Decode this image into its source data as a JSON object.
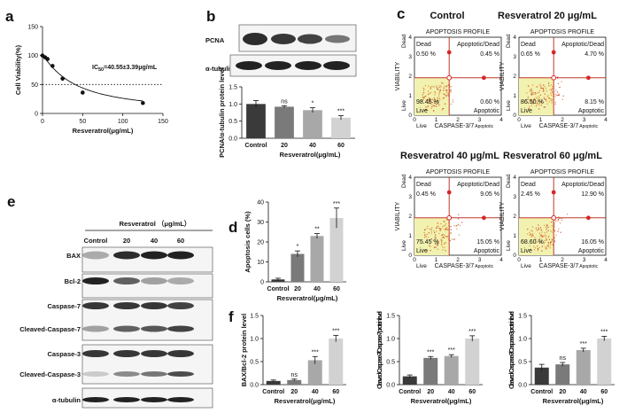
{
  "panel_labels": [
    "a",
    "b",
    "c",
    "d",
    "e",
    "f"
  ],
  "colors": {
    "control": "#3a3a3a",
    "d20": "#7a7a7a",
    "d40": "#a8a8a8",
    "d60": "#d2d2d2",
    "flow_dot": "#d62728",
    "flow_gate": "#f2f2b0",
    "flow_line": "#c0392b"
  },
  "chart_data": [
    {
      "id": "a",
      "type": "line",
      "xlabel": "Resveratrol(μg/mL)",
      "ylabel": "Cell Viability(%)",
      "annotation_ic50": "IC",
      "annotation_ic50_sub": "50",
      "annotation_ic50_value": "=40.55±3.39μg/mL",
      "xlim": [
        0,
        150
      ],
      "ylim": [
        0,
        150
      ],
      "xticks": [
        "0",
        "50",
        "100",
        "150"
      ],
      "yticks": [
        "0",
        "50",
        "100",
        "150"
      ],
      "reference_y": 50,
      "x": [
        0,
        3.125,
        6.25,
        12.5,
        25,
        50,
        125
      ],
      "y": [
        100,
        97,
        94,
        82,
        60,
        36,
        18
      ],
      "err": [
        2,
        2,
        2,
        3,
        3,
        3,
        2
      ]
    },
    {
      "id": "b",
      "type": "bar",
      "ylabel": "PCNA/α-tubulin protein level",
      "xlabel": "Resveratrol(μg/mL)",
      "blot_labels": [
        "PCNA",
        "α-tubulin"
      ],
      "categories": [
        "Control",
        "20",
        "40",
        "60"
      ],
      "values": [
        1.0,
        0.92,
        0.82,
        0.6
      ],
      "err": [
        0.1,
        0.03,
        0.07,
        0.06
      ],
      "significance": [
        "",
        "ns",
        "*",
        "***"
      ],
      "ylim": [
        0,
        1.5
      ],
      "yticks": [
        "0.0",
        "0.5",
        "1.0",
        "1.5"
      ]
    },
    {
      "id": "c",
      "type": "scatter",
      "subtitle": "APOPTOSIS PROFILE",
      "xlabel": "CASPASE-3/7",
      "xlabel_suffix": "Apoptotic",
      "ylabel": "VIABILITY",
      "quadrant_labels": {
        "dead": "Dead",
        "apoptotic_dead": "Apoptotic/Dead",
        "live": "Live",
        "apoptotic": "Apoptotic"
      },
      "side_labels": {
        "dead": "Dead",
        "live": "Live",
        "x_live": "Live"
      },
      "xticks": [
        "0",
        "1",
        "2",
        "3",
        "4"
      ],
      "yticks": [
        "0",
        "1",
        "2",
        "3",
        "4"
      ],
      "plots": [
        {
          "title": "Control",
          "dead": "0.50 %",
          "apoptotic_dead": "0.45 %",
          "live": "98.45 %",
          "apoptotic": "0.60 %"
        },
        {
          "title": "Resveratrol 20 μg/mL",
          "dead": "0.65 %",
          "apoptotic_dead": "4.70 %",
          "live": "86.50 %",
          "apoptotic": "8.15 %"
        },
        {
          "title": "Resveratrol 40 μg/mL",
          "dead": "0.45 %",
          "apoptotic_dead": "9.05 %",
          "live": "75.45 %",
          "apoptotic": "15.05 %"
        },
        {
          "title": "Resveratrol 60 μg/mL",
          "dead": "2.45 %",
          "apoptotic_dead": "12.90 %",
          "live": "68.60 %",
          "apoptotic": "16.05 %"
        }
      ]
    },
    {
      "id": "d",
      "type": "bar",
      "ylabel": "Apoptosis cells (%)",
      "xlabel": "Resveratrol(μg/mL)",
      "categories": [
        "Control",
        "20",
        "40",
        "60"
      ],
      "values": [
        1.2,
        14,
        23,
        32
      ],
      "err": [
        0.6,
        1.5,
        1.2,
        5
      ],
      "significance": [
        "",
        "*",
        "**",
        "***"
      ],
      "ylim": [
        0,
        40
      ],
      "yticks": [
        "0",
        "10",
        "20",
        "30",
        "40"
      ]
    },
    {
      "id": "e",
      "type": "table",
      "header": "Resveratrol （μg/mL）",
      "columns": [
        "Control",
        "20",
        "40",
        "60"
      ],
      "rows": [
        "BAX",
        "Bcl-2",
        "Caspase-7",
        "Cleaved-Caspase-7",
        "Caspase-3",
        "Cleaved-Caspase-3",
        "α-tubulin"
      ]
    },
    {
      "id": "f1",
      "type": "bar",
      "ylabel": "BAX/Bcl-2 protein level",
      "xlabel": "Resveratrol(μg/mL)",
      "categories": [
        "Control",
        "20",
        "40",
        "60"
      ],
      "values": [
        0.08,
        0.1,
        0.53,
        1.0
      ],
      "err": [
        0.02,
        0.02,
        0.08,
        0.07
      ],
      "significance": [
        "",
        "ns",
        "***",
        "***"
      ],
      "ylim": [
        0,
        1.5
      ],
      "yticks": [
        "0.0",
        "0.5",
        "1.0",
        "1.5"
      ]
    },
    {
      "id": "f2",
      "type": "bar",
      "ylabel": "Cleaved-Caspase-7/Caspase-7 protein level",
      "xlabel": "Resveratrol(μg/mL)",
      "categories": [
        "Control",
        "20",
        "40",
        "60"
      ],
      "values": [
        0.18,
        0.58,
        0.62,
        1.0
      ],
      "err": [
        0.03,
        0.03,
        0.03,
        0.06
      ],
      "significance": [
        "",
        "***",
        "***",
        "***"
      ],
      "ylim": [
        0,
        1.5
      ],
      "yticks": [
        "0.0",
        "0.5",
        "1.0",
        "1.5"
      ]
    },
    {
      "id": "f3",
      "type": "bar",
      "ylabel": "Cleaved-Caspase-3/Caspase-3 protein level",
      "xlabel": "Resveratrol(μg/mL)",
      "categories": [
        "Control",
        "20",
        "40",
        "60"
      ],
      "values": [
        0.37,
        0.44,
        0.75,
        1.0
      ],
      "err": [
        0.07,
        0.04,
        0.04,
        0.05
      ],
      "significance": [
        "",
        "ns",
        "***",
        "***"
      ],
      "ylim": [
        0,
        1.5
      ],
      "yticks": [
        "0.0",
        "0.5",
        "1.0",
        "1.5"
      ]
    }
  ]
}
